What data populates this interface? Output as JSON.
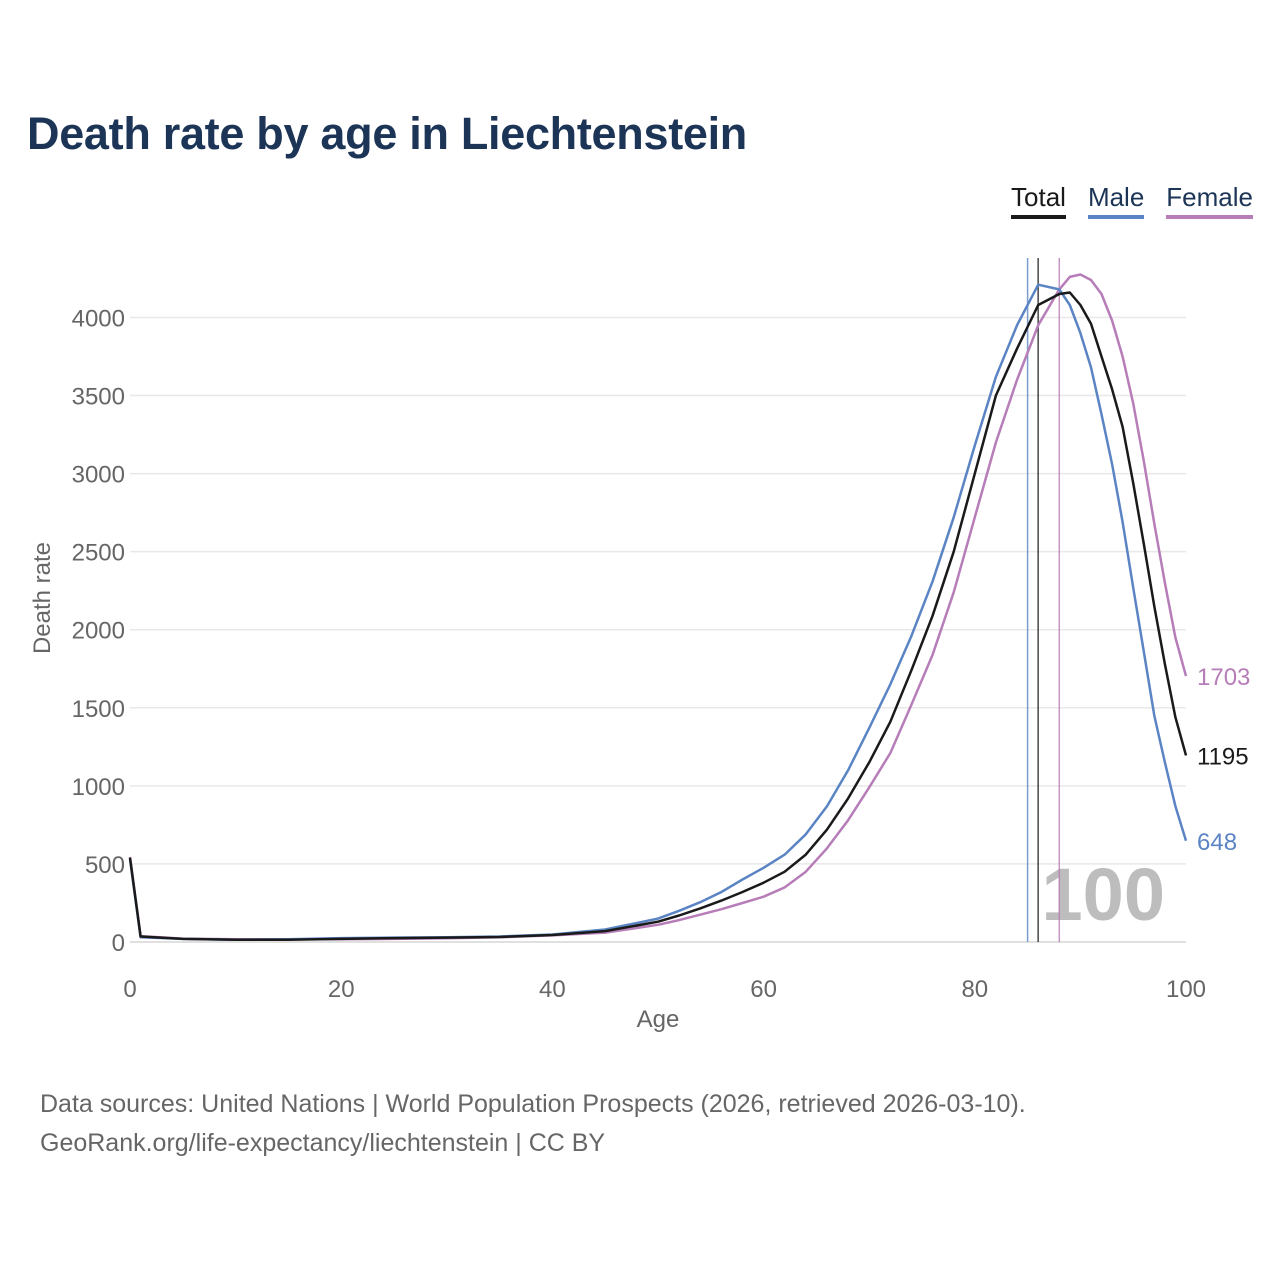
{
  "title": "Death rate by age in Liechtenstein",
  "legend": [
    {
      "label": "Total",
      "color": "#1a1a1a",
      "line": "#1a1a1a"
    },
    {
      "label": "Male",
      "color": "#1c3557",
      "line": "#5b84c4"
    },
    {
      "label": "Female",
      "color": "#1c3557",
      "line": "#b67db8"
    }
  ],
  "footer": {
    "source": "Data sources: United Nations | World Population Prospects (2026, retrieved 2026-03-10).",
    "credit": "GeoRank.org/life-expectancy/liechtenstein | CC BY"
  },
  "chart_data": {
    "type": "line",
    "title": "Death rate by age in Liechtenstein",
    "xlabel": "Age",
    "ylabel": "Death rate",
    "xlim": [
      0,
      100
    ],
    "ylim": [
      0,
      4400
    ],
    "xticks": [
      0,
      20,
      40,
      60,
      80,
      100
    ],
    "yticks": [
      0,
      500,
      1000,
      1500,
      2000,
      2500,
      3000,
      3500,
      4000
    ],
    "grid": true,
    "legend_position": "top-right",
    "watermark": "100",
    "x": [
      0,
      1,
      5,
      10,
      15,
      20,
      25,
      30,
      35,
      40,
      45,
      50,
      52,
      54,
      56,
      58,
      60,
      62,
      64,
      66,
      68,
      70,
      72,
      74,
      76,
      78,
      80,
      82,
      84,
      86,
      88,
      89,
      90,
      91,
      92,
      93,
      94,
      95,
      96,
      97,
      98,
      99,
      100
    ],
    "series": [
      {
        "name": "Total",
        "color": "#1a1a1a",
        "end_label": "1195",
        "values": [
          540,
          35,
          20,
          15,
          15,
          20,
          25,
          28,
          32,
          45,
          70,
          130,
          170,
          215,
          265,
          320,
          380,
          450,
          560,
          720,
          920,
          1150,
          1410,
          1740,
          2090,
          2500,
          3000,
          3500,
          3800,
          4080,
          4150,
          4160,
          4080,
          3960,
          3750,
          3540,
          3300,
          2940,
          2550,
          2150,
          1780,
          1440,
          1195
        ],
        "marker_age": 86
      },
      {
        "name": "Male",
        "color": "#5b84c4",
        "end_label": "648",
        "values": [
          530,
          30,
          20,
          15,
          18,
          25,
          28,
          30,
          35,
          48,
          80,
          150,
          200,
          255,
          320,
          400,
          475,
          560,
          690,
          870,
          1100,
          1370,
          1650,
          1960,
          2310,
          2720,
          3180,
          3620,
          3950,
          4210,
          4180,
          4080,
          3900,
          3680,
          3380,
          3060,
          2690,
          2270,
          1860,
          1450,
          1150,
          870,
          648
        ],
        "marker_age": 85
      },
      {
        "name": "Female",
        "color": "#b67db8",
        "end_label": "1703",
        "values": [
          545,
          38,
          22,
          18,
          18,
          18,
          20,
          24,
          30,
          42,
          60,
          110,
          140,
          175,
          210,
          250,
          290,
          350,
          450,
          600,
          780,
          990,
          1210,
          1520,
          1840,
          2240,
          2720,
          3200,
          3600,
          3950,
          4180,
          4260,
          4275,
          4240,
          4150,
          3980,
          3750,
          3450,
          3080,
          2680,
          2300,
          1950,
          1703
        ],
        "marker_age": 88
      }
    ]
  }
}
